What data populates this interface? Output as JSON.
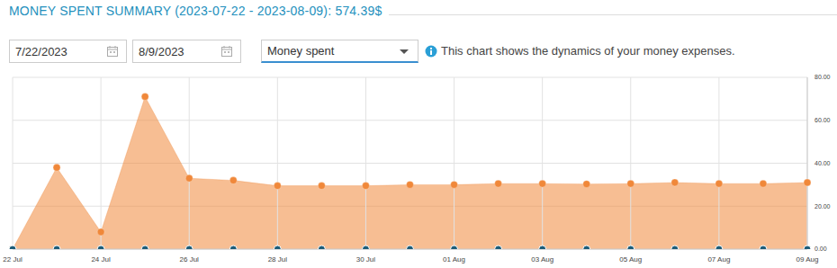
{
  "chart_data": {
    "type": "area",
    "title": "MONEY SPENT SUMMARY (2023-07-22 - 2023-08-09): 574.39$",
    "categories": [
      "22 Jul",
      null,
      "24 Jul",
      null,
      "26 Jul",
      null,
      "28 Jul",
      null,
      "30 Jul",
      null,
      "01 Aug",
      null,
      "03 Aug",
      null,
      "05 Aug",
      null,
      "07 Aug",
      null,
      "09 Aug"
    ],
    "series": [
      {
        "type": "area",
        "color": "#f0883a",
        "marker": "circle",
        "values": [
          0,
          38,
          8,
          71,
          33,
          32,
          29.5,
          29.5,
          29.5,
          30,
          30,
          30.5,
          30.5,
          30.3,
          30.5,
          31,
          30.5,
          30.5,
          31
        ]
      },
      {
        "type": "scatter",
        "color": "#1d5c78",
        "marker": "circle",
        "values": [
          0,
          0,
          0,
          0,
          0,
          0,
          0,
          0,
          0,
          0,
          0,
          0,
          0,
          0,
          0,
          0,
          0,
          0,
          0
        ]
      }
    ],
    "ylim": [
      0,
      80
    ],
    "yticks": [
      {
        "value": 0,
        "label": "0.00"
      },
      {
        "value": 20,
        "label": "20.00"
      },
      {
        "value": 40,
        "label": "40.00"
      },
      {
        "value": 60,
        "label": "60.00"
      },
      {
        "value": 80,
        "label": "80.00"
      }
    ],
    "grid": true
  },
  "controls": {
    "start_date": "7/22/2023",
    "end_date": "8/9/2023",
    "metric": "Money spent",
    "info": "This chart shows the dynamics of your money expenses."
  }
}
